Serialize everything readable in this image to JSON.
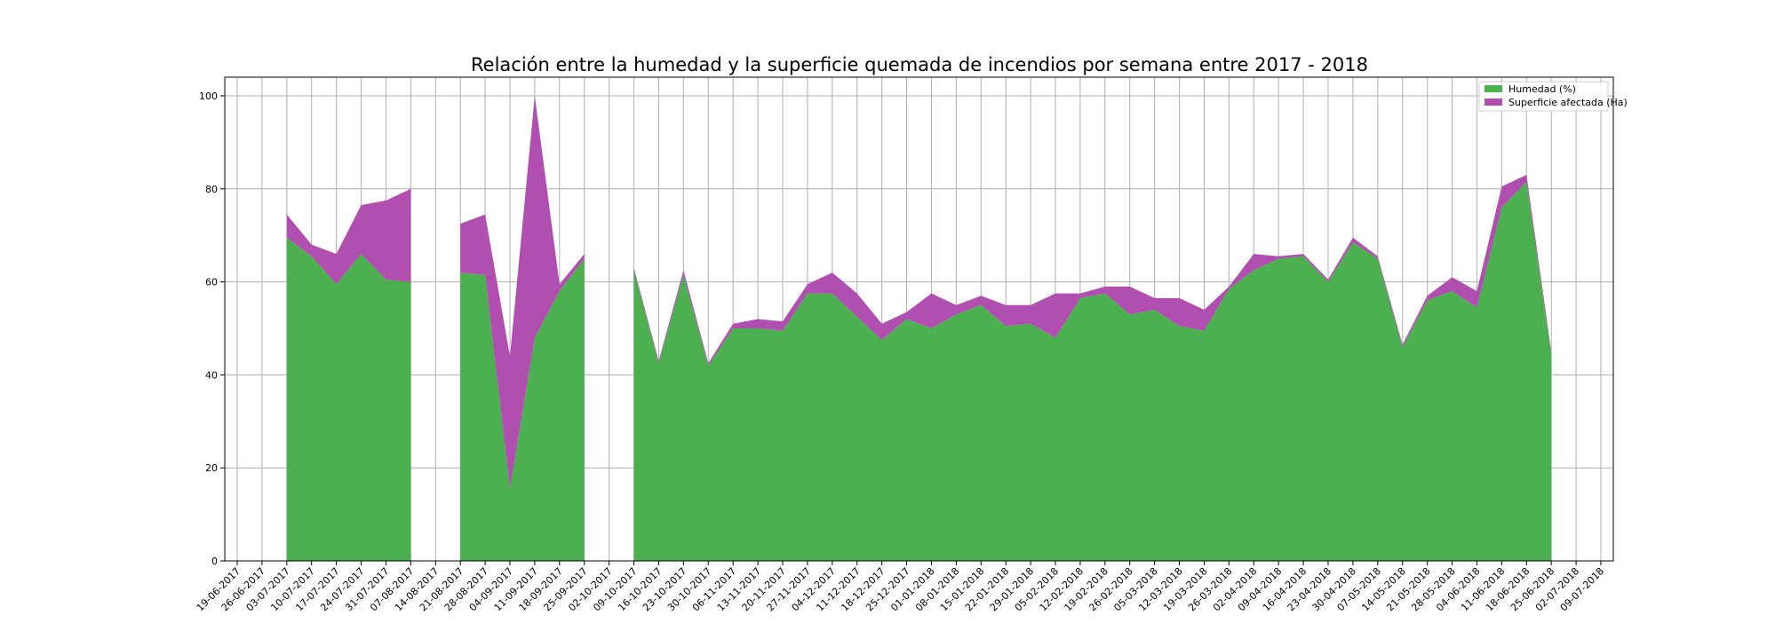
{
  "chart_data": {
    "type": "area",
    "stacked": true,
    "title": "Relación entre la humedad y la superficie quemada de incendios por semana entre 2017 - 2018",
    "xlabel": "",
    "ylabel": "",
    "ylim": [
      0,
      104
    ],
    "yticks": [
      0,
      20,
      40,
      60,
      80,
      100
    ],
    "grid": true,
    "legend_position": "top-right",
    "categories": [
      "19-06-2017",
      "26-06-2017",
      "03-07-2017",
      "10-07-2017",
      "17-07-2017",
      "24-07-2017",
      "31-07-2017",
      "07-08-2017",
      "14-08-2017",
      "21-08-2017",
      "28-08-2017",
      "04-09-2017",
      "11-09-2017",
      "18-09-2017",
      "25-09-2017",
      "02-10-2017",
      "09-10-2017",
      "16-10-2017",
      "23-10-2017",
      "30-10-2017",
      "06-11-2017",
      "13-11-2017",
      "20-11-2017",
      "27-11-2017",
      "04-12-2017",
      "11-12-2017",
      "18-12-2017",
      "25-12-2017",
      "01-01-2018",
      "08-01-2018",
      "15-01-2018",
      "22-01-2018",
      "29-01-2018",
      "05-02-2018",
      "12-02-2018",
      "19-02-2018",
      "26-02-2018",
      "05-03-2018",
      "12-03-2018",
      "19-03-2018",
      "26-03-2018",
      "02-04-2018",
      "09-04-2018",
      "16-04-2018",
      "23-04-2018",
      "30-04-2018",
      "07-05-2018",
      "14-05-2018",
      "21-05-2018",
      "28-05-2018",
      "04-06-2018",
      "11-06-2018",
      "18-06-2018",
      "25-06-2018",
      "02-07-2018",
      "09-07-2018"
    ],
    "series": [
      {
        "name": "Humedad (%)",
        "color": "#4caf50",
        "values": [
          null,
          null,
          69.5,
          65.5,
          59.5,
          66,
          60.5,
          60,
          null,
          62,
          61.5,
          15.5,
          48,
          58,
          65,
          null,
          62.5,
          42.5,
          61.5,
          42,
          50,
          50,
          49.5,
          57.5,
          57.5,
          52.5,
          47.5,
          52,
          50,
          53,
          55,
          50.5,
          51,
          48,
          56.5,
          57.5,
          53,
          54,
          50.5,
          49.5,
          58.5,
          62.5,
          65,
          65.5,
          60,
          68.5,
          65,
          46,
          56,
          58,
          54.5,
          76,
          81.5,
          44.5,
          null,
          null
        ]
      },
      {
        "name": "Superficie afectada (Ha)",
        "color": "#b04fb0",
        "values": [
          null,
          null,
          5,
          2.5,
          6.5,
          10.5,
          17,
          20,
          null,
          10.5,
          13,
          28.5,
          52,
          1.5,
          1,
          null,
          0.5,
          0.5,
          1,
          0.5,
          1,
          2,
          2,
          2,
          4.5,
          5,
          3.5,
          1.5,
          7.5,
          2,
          2,
          4.5,
          4,
          9.5,
          1,
          1.5,
          6,
          2.5,
          6,
          4.5,
          0.5,
          3.5,
          0.5,
          0.5,
          0.5,
          1,
          0.5,
          0.5,
          1,
          3,
          3.5,
          4.5,
          1.5,
          0.5,
          null,
          null
        ]
      }
    ]
  }
}
